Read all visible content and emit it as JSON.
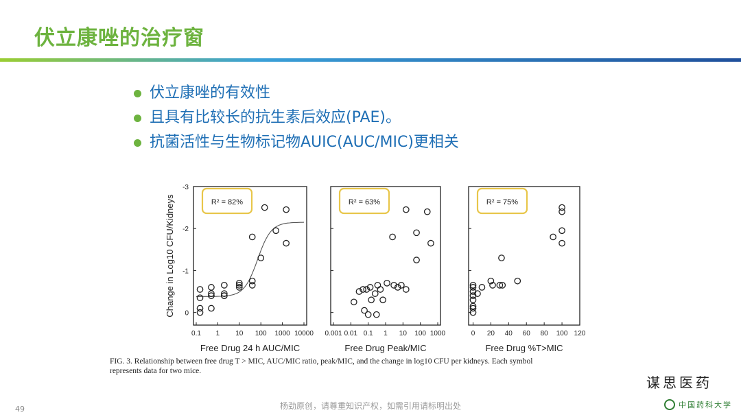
{
  "header": {
    "title": "伏立康唑的治疗窗"
  },
  "bullets": [
    "伏立康唑的有效性",
    "且具有比较长的抗生素后效应(PAE)。",
    "抗菌活性与生物标记物AUIC(AUC/MIC)更相关"
  ],
  "shared_ylabel": "Change in Log10 CFU/Kidneys",
  "chart_data": [
    {
      "type": "scatter",
      "xlabel": "Free Drug 24 h AUC/MIC",
      "ylabel": "Change in Log10 CFU/Kidneys",
      "annotation": "R² = 82%",
      "xscale": "log",
      "xlim": [
        0.1,
        10000
      ],
      "ylim": [
        0.3,
        -3
      ],
      "x_ticks": [
        "0.1",
        "1",
        "10",
        "100",
        "1000",
        "10000"
      ],
      "y_ticks": [
        "-3",
        "-2",
        "-1",
        "0"
      ],
      "fit_curve": "sigmoid",
      "points": [
        [
          0.15,
          -0.35
        ],
        [
          0.15,
          -0.55
        ],
        [
          0.15,
          -0.1
        ],
        [
          0.15,
          0.0
        ],
        [
          0.5,
          -0.45
        ],
        [
          0.5,
          -0.6
        ],
        [
          0.5,
          -0.1
        ],
        [
          0.5,
          -0.4
        ],
        [
          2,
          -0.45
        ],
        [
          2,
          -0.65
        ],
        [
          2,
          -0.4
        ],
        [
          2,
          -0.4
        ],
        [
          10,
          -0.6
        ],
        [
          10,
          -0.7
        ],
        [
          10,
          -0.65
        ],
        [
          40,
          -0.65
        ],
        [
          40,
          -0.75
        ],
        [
          40,
          -1.8
        ],
        [
          100,
          -1.3
        ],
        [
          150,
          -2.5
        ],
        [
          500,
          -1.95
        ],
        [
          1500,
          -2.45
        ],
        [
          1500,
          -1.65
        ]
      ]
    },
    {
      "type": "scatter",
      "xlabel": "Free Drug Peak/MIC",
      "annotation": "R² = 63%",
      "xscale": "log",
      "xlim": [
        0.001,
        1000
      ],
      "ylim": [
        0.3,
        -3
      ],
      "x_ticks": [
        "0.001",
        "0.01",
        "0.1",
        "1",
        "10",
        "100",
        "1000"
      ],
      "points": [
        [
          0.015,
          -0.25
        ],
        [
          0.03,
          -0.5
        ],
        [
          0.05,
          -0.55
        ],
        [
          0.06,
          -0.05
        ],
        [
          0.08,
          -0.55
        ],
        [
          0.1,
          0.05
        ],
        [
          0.13,
          -0.6
        ],
        [
          0.15,
          -0.3
        ],
        [
          0.25,
          -0.45
        ],
        [
          0.3,
          0.05
        ],
        [
          0.35,
          -0.65
        ],
        [
          0.5,
          -0.55
        ],
        [
          0.7,
          -0.3
        ],
        [
          1.2,
          -0.7
        ],
        [
          2.5,
          -1.8
        ],
        [
          3,
          -0.65
        ],
        [
          5,
          -0.6
        ],
        [
          8,
          -0.65
        ],
        [
          15,
          -2.45
        ],
        [
          15,
          -0.55
        ],
        [
          60,
          -1.25
        ],
        [
          60,
          -1.9
        ],
        [
          250,
          -2.4
        ],
        [
          400,
          -1.65
        ]
      ]
    },
    {
      "type": "scatter",
      "xlabel": "Free Drug %T>MIC",
      "annotation": "R² = 75%",
      "xlim": [
        -5,
        120
      ],
      "ylim": [
        0.3,
        -3
      ],
      "x_ticks": [
        "0",
        "20",
        "40",
        "60",
        "80",
        "100",
        "120"
      ],
      "points": [
        [
          0,
          -0.65
        ],
        [
          0,
          -0.6
        ],
        [
          0,
          -0.5
        ],
        [
          0,
          -0.4
        ],
        [
          0,
          -0.3
        ],
        [
          0,
          -0.15
        ],
        [
          0,
          0.0
        ],
        [
          0,
          -0.1
        ],
        [
          5,
          -0.45
        ],
        [
          10,
          -0.6
        ],
        [
          20,
          -0.75
        ],
        [
          22,
          -0.65
        ],
        [
          30,
          -0.65
        ],
        [
          32,
          -1.3
        ],
        [
          33,
          -0.65
        ],
        [
          50,
          -0.75
        ],
        [
          90,
          -1.8
        ],
        [
          100,
          -2.5
        ],
        [
          100,
          -2.4
        ],
        [
          100,
          -1.95
        ],
        [
          100,
          -1.65
        ]
      ]
    }
  ],
  "caption": {
    "line1": "FIG. 3. Relationship between free drug T > MIC, AUC/MIC ratio, peak/MIC, and the change in log10 CFU per kidneys. Each symbol",
    "line2": "represents data for two mice."
  },
  "brand": "谋思医药",
  "footer": {
    "note": "杨劲原创，请尊重知识产权，如需引用请标明出处",
    "page": "49",
    "logo_text": "中国药科大学"
  }
}
